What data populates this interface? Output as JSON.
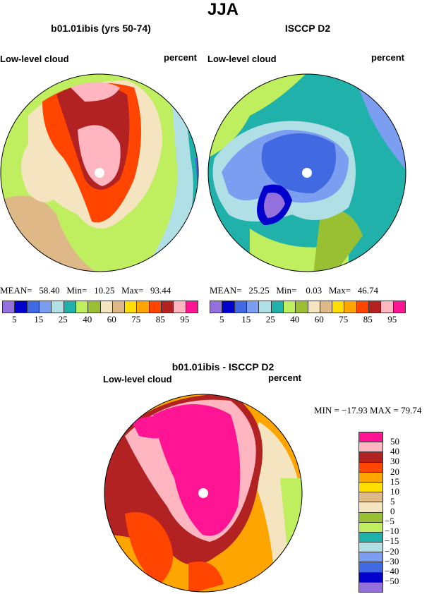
{
  "figure_title": "JJA",
  "panels": [
    {
      "title": "b01.01ibis (yrs 50-74)",
      "left_label": "Low-level cloud",
      "right_label": "percent",
      "stats": {
        "mean_label": "MEAN=",
        "mean": "58.40",
        "min_label": "Min=",
        "min": "10.25",
        "max_label": "Max=",
        "max": "93.44"
      }
    },
    {
      "title": "ISCCP D2",
      "left_label": "Low-level cloud",
      "right_label": "percent",
      "stats": {
        "mean_label": "MEAN=",
        "mean": "25.25",
        "min_label": "Min=",
        "min": "0.03",
        "max_label": "Max=",
        "max": "46.74"
      }
    },
    {
      "title": "b01.01ibis - ISCCP D2",
      "left_label": "Low-level cloud",
      "right_label": "percent",
      "stats_text": "MIN = −17.93 MAX =  79.74"
    }
  ],
  "colorbar_abs": {
    "colors": [
      "#9370DB",
      "#0000CD",
      "#4169E1",
      "#7B9EF0",
      "#B0E0E6",
      "#20B2AA",
      "#BFEF5F",
      "#99BF33",
      "#F5E4C0",
      "#DEB887",
      "#FFDF00",
      "#FFA500",
      "#FF4500",
      "#B22222",
      "#FFB6C1",
      "#FF1493"
    ],
    "labels": [
      "5",
      "15",
      "25",
      "40",
      "60",
      "75",
      "85",
      "95"
    ]
  },
  "colorbar_diff": {
    "colors": [
      "#FF1493",
      "#FFB6C1",
      "#B22222",
      "#FF4500",
      "#FFA500",
      "#FFDF00",
      "#DEB887",
      "#F5E4C0",
      "#99BF33",
      "#BFEF5F",
      "#20B2AA",
      "#B0E0E6",
      "#7B9EF0",
      "#4169E1",
      "#0000CD",
      "#9370DB"
    ],
    "labels": [
      "50",
      "40",
      "30",
      "20",
      "15",
      "10",
      "5",
      "0",
      "−5",
      "−10",
      "−15",
      "−20",
      "−30",
      "−40",
      "−50"
    ]
  }
}
